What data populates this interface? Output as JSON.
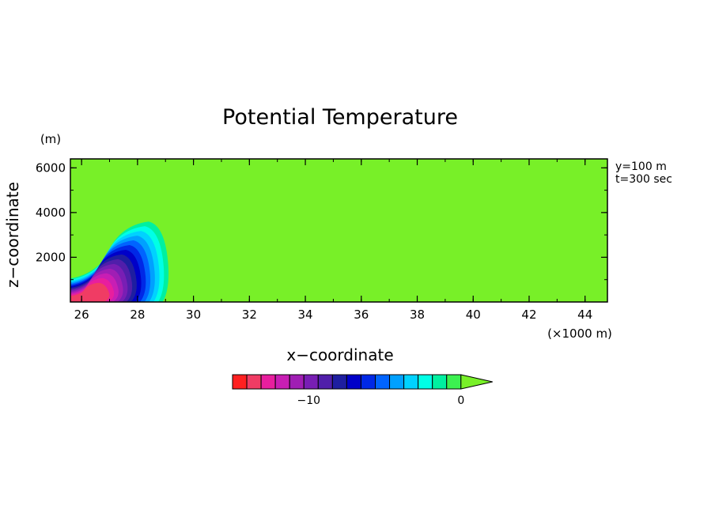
{
  "chart_data": {
    "type": "heatmap",
    "title": "Potential Temperature",
    "xlabel": "x−coordinate",
    "ylabel": "z−coordinate",
    "x_units": "(×1000 m)",
    "y_units": "(m)",
    "annotations": [
      "y=100 m",
      "t=300 sec"
    ],
    "xlim": [
      25.6,
      44.8
    ],
    "ylim": [
      0,
      6400
    ],
    "x_ticks": [
      26,
      28,
      30,
      32,
      34,
      36,
      38,
      40,
      42,
      44
    ],
    "x_tick_labels": [
      "26",
      "28",
      "30",
      "32",
      "34",
      "36",
      "38",
      "40",
      "42",
      "44"
    ],
    "y_ticks": [
      2000,
      4000,
      6000
    ],
    "y_tick_labels": [
      "2000",
      "4000",
      "6000"
    ],
    "colorbar": {
      "levels_min": -15,
      "levels_max": 0,
      "step": 1,
      "extend": "max",
      "tick_values": [
        -10,
        0
      ],
      "tick_labels": [
        "−10",
        "0"
      ],
      "colors": [
        "#ff2020",
        "#f03c64",
        "#e81e9e",
        "#c81eb4",
        "#a01eb4",
        "#781eb4",
        "#501eaa",
        "#1e1ea0",
        "#0000c8",
        "#0028e6",
        "#0064ff",
        "#00a0ff",
        "#00d2ff",
        "#00ffe6",
        "#00f0a0",
        "#3cf050",
        "#78f028"
      ]
    },
    "field": {
      "background_value": 0,
      "cold_pool_min_value": -14,
      "cold_pool_extent_x": 29.1,
      "cold_pool_top_z": 3600
    }
  }
}
